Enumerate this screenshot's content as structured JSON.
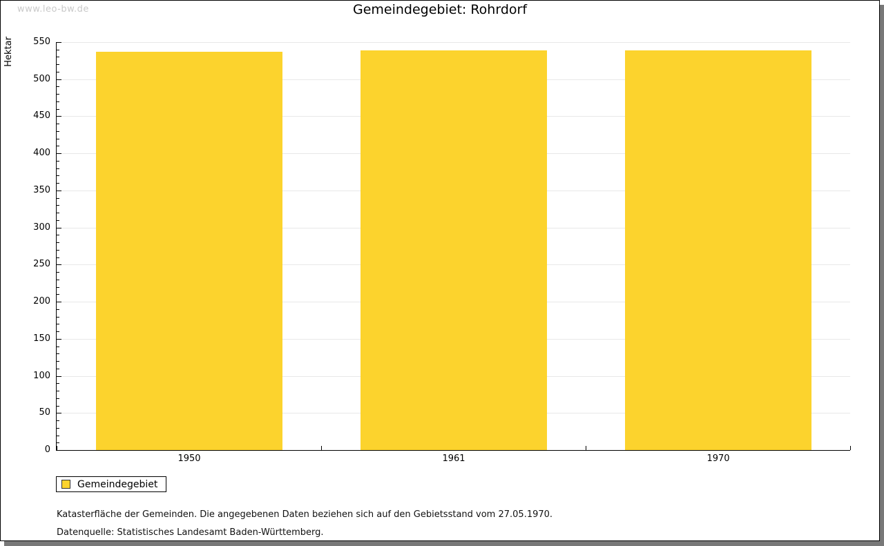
{
  "watermark": "www.leo-bw.de",
  "title": "Gemeindegebiet: Rohrdorf",
  "chart_data": {
    "type": "bar",
    "title": "Gemeindegebiet: Rohrdorf",
    "categories": [
      "1950",
      "1961",
      "1970"
    ],
    "series": [
      {
        "name": "Gemeindegebiet",
        "values": [
          537,
          539,
          539
        ]
      }
    ],
    "xlabel": "",
    "ylabel": "Hektar",
    "ylim": [
      0,
      550
    ],
    "ytick_step": 50,
    "yminor_step": 10,
    "grid": true,
    "bar_color": "#fcd32d",
    "legend_position": "bottom-left"
  },
  "legend": {
    "items": [
      {
        "label": "Gemeindegebiet",
        "color": "#fcd32d"
      }
    ]
  },
  "footnotes": [
    "Katasterfläche der Gemeinden. Die angegebenen Daten beziehen sich auf den Gebietsstand vom 27.05.1970.",
    "Datenquelle: Statistisches Landesamt Baden-Württemberg."
  ]
}
